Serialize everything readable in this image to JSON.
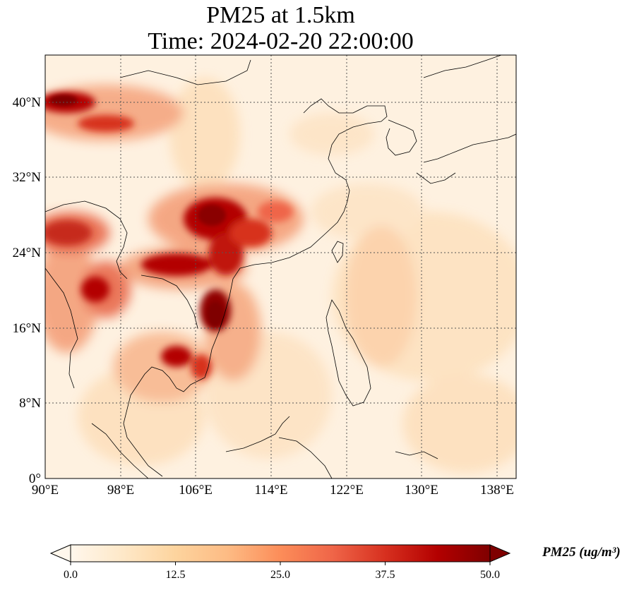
{
  "title": {
    "line1": "PM25 at 1.5km",
    "line2": "Time: 2024-02-20 22:00:00"
  },
  "map": {
    "lon_range": [
      90,
      140
    ],
    "lat_range": [
      0,
      45
    ],
    "lon_ticks": [
      "90°E",
      "98°E",
      "106°E",
      "114°E",
      "122°E",
      "130°E",
      "138°E"
    ],
    "lat_ticks": [
      "0°",
      "8°N",
      "16°N",
      "24°N",
      "32°N",
      "40°N"
    ],
    "gridlines": "dotted",
    "colormap": "OrRd",
    "field_description": "high PM2.5 over northern Vietnam/southern China, Myanmar, northern Thailand, Cambodia and western Tibet area"
  },
  "colorbar": {
    "min": 0.0,
    "max": 50.0,
    "ticks": [
      "0.0",
      "12.5",
      "25.0",
      "37.5",
      "50.0"
    ],
    "label": "PM25 (ug/m³)",
    "extend": "both",
    "colors": [
      "#fff7ec",
      "#fee8c8",
      "#fdd49e",
      "#fdbb84",
      "#fc8d59",
      "#ef6548",
      "#d7301f",
      "#b30000",
      "#7f0000"
    ]
  }
}
